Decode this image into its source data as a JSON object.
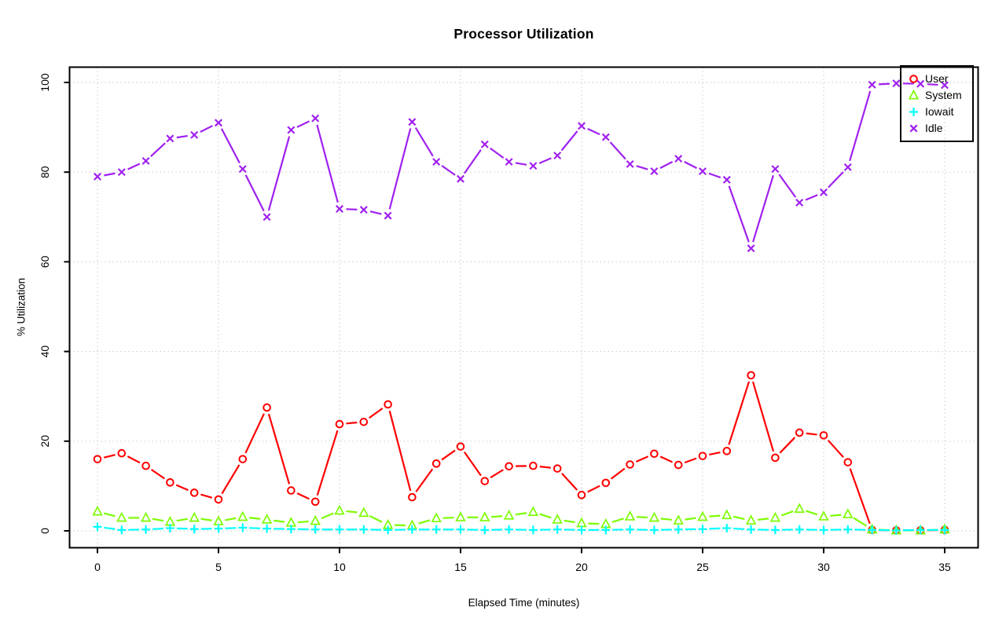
{
  "figure": {
    "background": "#ffffff",
    "text_color": "#000000"
  },
  "chart_data": {
    "type": "line",
    "title": "Processor Utilization",
    "xlabel": "Elapsed Time (minutes)",
    "ylabel": "% Utilization",
    "xlim": [
      0,
      35
    ],
    "ylim": [
      0,
      100
    ],
    "x_ticks": [
      0,
      5,
      10,
      15,
      20,
      25,
      30,
      35
    ],
    "y_ticks": [
      0,
      20,
      40,
      60,
      80,
      100
    ],
    "grid": true,
    "grid_color": "#d3d3d3",
    "line_style": "points-with-broken-lines",
    "legend_position": "top-right",
    "x": [
      0,
      1,
      2,
      3,
      4,
      5,
      6,
      7,
      8,
      9,
      10,
      11,
      12,
      13,
      14,
      15,
      16,
      17,
      18,
      19,
      20,
      21,
      22,
      23,
      24,
      25,
      26,
      27,
      28,
      29,
      30,
      31,
      32,
      33,
      34,
      35
    ],
    "series": [
      {
        "name": "User",
        "color": "#ff0000",
        "marker": "circle",
        "values": [
          16.0,
          17.3,
          14.5,
          10.8,
          8.5,
          7.0,
          16.0,
          27.5,
          9.0,
          6.5,
          23.8,
          24.3,
          28.2,
          7.5,
          15.0,
          18.8,
          11.1,
          14.4,
          14.5,
          13.9,
          8.0,
          10.7,
          14.8,
          17.2,
          14.7,
          16.7,
          17.8,
          34.7,
          16.3,
          21.9,
          21.3,
          15.3,
          0.2,
          0.1,
          0.1,
          0.2
        ]
      },
      {
        "name": "System",
        "color": "#7cfc00",
        "marker": "triangle-up",
        "values": [
          4.3,
          2.9,
          2.9,
          2.0,
          2.9,
          2.1,
          3.1,
          2.5,
          1.8,
          2.2,
          4.5,
          4.0,
          1.3,
          1.2,
          2.8,
          3.0,
          3.0,
          3.4,
          4.2,
          2.5,
          1.7,
          1.5,
          3.2,
          2.9,
          2.3,
          3.1,
          3.5,
          2.3,
          2.9,
          4.9,
          3.2,
          3.7,
          0.3,
          0.1,
          0.1,
          0.3
        ]
      },
      {
        "name": "Iowait",
        "color": "#00ffff",
        "marker": "plus",
        "values": [
          0.9,
          0.2,
          0.3,
          0.6,
          0.4,
          0.5,
          0.7,
          0.5,
          0.4,
          0.3,
          0.3,
          0.3,
          0.2,
          0.3,
          0.3,
          0.3,
          0.2,
          0.3,
          0.2,
          0.3,
          0.2,
          0.2,
          0.3,
          0.2,
          0.3,
          0.4,
          0.6,
          0.3,
          0.2,
          0.3,
          0.2,
          0.3,
          0.2,
          0.1,
          0.2,
          0.2
        ]
      },
      {
        "name": "Idle",
        "color": "#a020f0",
        "marker": "x",
        "values": [
          79.0,
          80.0,
          82.5,
          87.5,
          88.3,
          91.0,
          80.7,
          70.0,
          89.4,
          92.0,
          71.8,
          71.6,
          70.3,
          91.2,
          82.3,
          78.5,
          86.2,
          82.3,
          81.4,
          83.7,
          90.3,
          87.8,
          81.8,
          80.2,
          83.0,
          80.2,
          78.3,
          63.0,
          80.7,
          73.2,
          75.5,
          81.1,
          99.5,
          99.8,
          99.7,
          99.4
        ]
      }
    ]
  }
}
